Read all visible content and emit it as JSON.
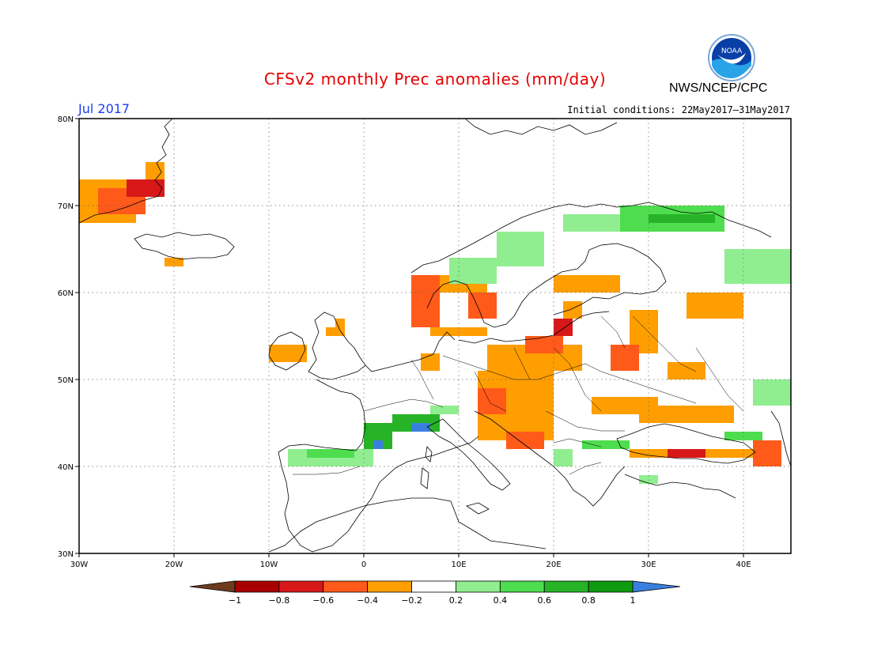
{
  "header": {
    "title": "CFSv2 monthly Prec anomalies (mm/day)",
    "org": "NWS/NCEP/CPC",
    "logo_text": "NOAA",
    "month": "Jul 2017",
    "initial_conditions": "Initial conditions: 22May2017–31May2017"
  },
  "axes": {
    "x_ticks": [
      {
        "lon": -30,
        "label": "30W"
      },
      {
        "lon": -20,
        "label": "20W"
      },
      {
        "lon": -10,
        "label": "10W"
      },
      {
        "lon": 0,
        "label": "0"
      },
      {
        "lon": 10,
        "label": "10E"
      },
      {
        "lon": 20,
        "label": "20E"
      },
      {
        "lon": 30,
        "label": "30E"
      },
      {
        "lon": 40,
        "label": "40E"
      }
    ],
    "y_ticks": [
      {
        "lat": 30,
        "label": "30N"
      },
      {
        "lat": 40,
        "label": "40N"
      },
      {
        "lat": 50,
        "label": "50N"
      },
      {
        "lat": 60,
        "label": "60N"
      },
      {
        "lat": 70,
        "label": "70N"
      },
      {
        "lat": 80,
        "label": "80N"
      }
    ],
    "lon_range": [
      -30,
      45
    ],
    "lat_range": [
      30,
      80
    ],
    "grid": true
  },
  "colorbar": {
    "labels": [
      "−1",
      "−0.8",
      "−0.6",
      "−0.4",
      "−0.2",
      "0.2",
      "0.4",
      "0.6",
      "0.8",
      "1"
    ],
    "colors": [
      "#6e3b1e",
      "#a80000",
      "#d81818",
      "#ff5a1a",
      "#ff9e00",
      "#ffffff",
      "#90ee90",
      "#4edd4e",
      "#27b327",
      "#0f9a0f",
      "#3a7fe0"
    ]
  },
  "chart_data": {
    "type": "heatmap",
    "cells": [
      {
        "lon": [
          -30,
          -24
        ],
        "lat": [
          68,
          73
        ],
        "v": "o"
      },
      {
        "lon": [
          -28,
          -23
        ],
        "lat": [
          69,
          72
        ],
        "v": "r"
      },
      {
        "lon": [
          -25,
          -21
        ],
        "lat": [
          71,
          73
        ],
        "v": "d"
      },
      {
        "lon": [
          -23,
          -21
        ],
        "lat": [
          73,
          75
        ],
        "v": "o"
      },
      {
        "lon": [
          -21,
          -19
        ],
        "lat": [
          63,
          64
        ],
        "v": "o"
      },
      {
        "lon": [
          -10,
          -6
        ],
        "lat": [
          52,
          54
        ],
        "v": "o"
      },
      {
        "lon": [
          -4,
          -2
        ],
        "lat": [
          55,
          56
        ],
        "v": "o"
      },
      {
        "lon": [
          -3,
          -2
        ],
        "lat": [
          56,
          57
        ],
        "v": "o"
      },
      {
        "lon": [
          5,
          8
        ],
        "lat": [
          56,
          62
        ],
        "v": "r"
      },
      {
        "lon": [
          8,
          13
        ],
        "lat": [
          60,
          62
        ],
        "v": "o"
      },
      {
        "lon": [
          11,
          14
        ],
        "lat": [
          57,
          60
        ],
        "v": "r"
      },
      {
        "lon": [
          7,
          13
        ],
        "lat": [
          55,
          56
        ],
        "v": "o"
      },
      {
        "lon": [
          6,
          8
        ],
        "lat": [
          51,
          53
        ],
        "v": "o"
      },
      {
        "lon": [
          13,
          23
        ],
        "lat": [
          51,
          54
        ],
        "v": "o"
      },
      {
        "lon": [
          17,
          21
        ],
        "lat": [
          53,
          55
        ],
        "v": "r"
      },
      {
        "lon": [
          20,
          22
        ],
        "lat": [
          55,
          57
        ],
        "v": "d"
      },
      {
        "lon": [
          21,
          23
        ],
        "lat": [
          57,
          59
        ],
        "v": "o"
      },
      {
        "lon": [
          20,
          27
        ],
        "lat": [
          60,
          62
        ],
        "v": "o"
      },
      {
        "lon": [
          28,
          31
        ],
        "lat": [
          53,
          58
        ],
        "v": "o"
      },
      {
        "lon": [
          26,
          29
        ],
        "lat": [
          51,
          54
        ],
        "v": "r"
      },
      {
        "lon": [
          34,
          40
        ],
        "lat": [
          57,
          60
        ],
        "v": "o"
      },
      {
        "lon": [
          32,
          36
        ],
        "lat": [
          50,
          52
        ],
        "v": "o"
      },
      {
        "lon": [
          12,
          20
        ],
        "lat": [
          43,
          51
        ],
        "v": "o"
      },
      {
        "lon": [
          12,
          15
        ],
        "lat": [
          46,
          49
        ],
        "v": "r"
      },
      {
        "lon": [
          15,
          19
        ],
        "lat": [
          42,
          44
        ],
        "v": "r"
      },
      {
        "lon": [
          24,
          31
        ],
        "lat": [
          46,
          48
        ],
        "v": "o"
      },
      {
        "lon": [
          29,
          39
        ],
        "lat": [
          45,
          47
        ],
        "v": "o"
      },
      {
        "lon": [
          28,
          42
        ],
        "lat": [
          41,
          42
        ],
        "v": "o"
      },
      {
        "lon": [
          32,
          36
        ],
        "lat": [
          41,
          42
        ],
        "v": "d"
      },
      {
        "lon": [
          41,
          44
        ],
        "lat": [
          40,
          43
        ],
        "v": "r"
      },
      {
        "lon": [
          21,
          29
        ],
        "lat": [
          67,
          69
        ],
        "v": "lg"
      },
      {
        "lon": [
          27,
          38
        ],
        "lat": [
          67,
          70
        ],
        "v": "g"
      },
      {
        "lon": [
          30,
          37
        ],
        "lat": [
          68,
          69
        ],
        "v": "dg"
      },
      {
        "lon": [
          14,
          19
        ],
        "lat": [
          63,
          67
        ],
        "v": "lg"
      },
      {
        "lon": [
          9,
          14
        ],
        "lat": [
          61,
          64
        ],
        "v": "lg"
      },
      {
        "lon": [
          38,
          45
        ],
        "lat": [
          61,
          65
        ],
        "v": "lg"
      },
      {
        "lon": [
          41,
          45
        ],
        "lat": [
          47,
          50
        ],
        "v": "lg"
      },
      {
        "lon": [
          -8,
          1
        ],
        "lat": [
          40,
          42
        ],
        "v": "lg"
      },
      {
        "lon": [
          -6,
          -1
        ],
        "lat": [
          41,
          42
        ],
        "v": "g"
      },
      {
        "lon": [
          0,
          3
        ],
        "lat": [
          42,
          45
        ],
        "v": "dg"
      },
      {
        "lon": [
          3,
          8
        ],
        "lat": [
          44,
          46
        ],
        "v": "dg"
      },
      {
        "lon": [
          5,
          7
        ],
        "lat": [
          44,
          45
        ],
        "v": "b"
      },
      {
        "lon": [
          1,
          2
        ],
        "lat": [
          42,
          43
        ],
        "v": "b"
      },
      {
        "lon": [
          7,
          10
        ],
        "lat": [
          46,
          47
        ],
        "v": "lg"
      },
      {
        "lon": [
          23,
          28
        ],
        "lat": [
          42,
          43
        ],
        "v": "g"
      },
      {
        "lon": [
          20,
          22
        ],
        "lat": [
          40,
          42
        ],
        "v": "lg"
      },
      {
        "lon": [
          29,
          31
        ],
        "lat": [
          38,
          39
        ],
        "v": "lg"
      },
      {
        "lon": [
          38,
          42
        ],
        "lat": [
          43,
          44
        ],
        "v": "g"
      }
    ]
  }
}
